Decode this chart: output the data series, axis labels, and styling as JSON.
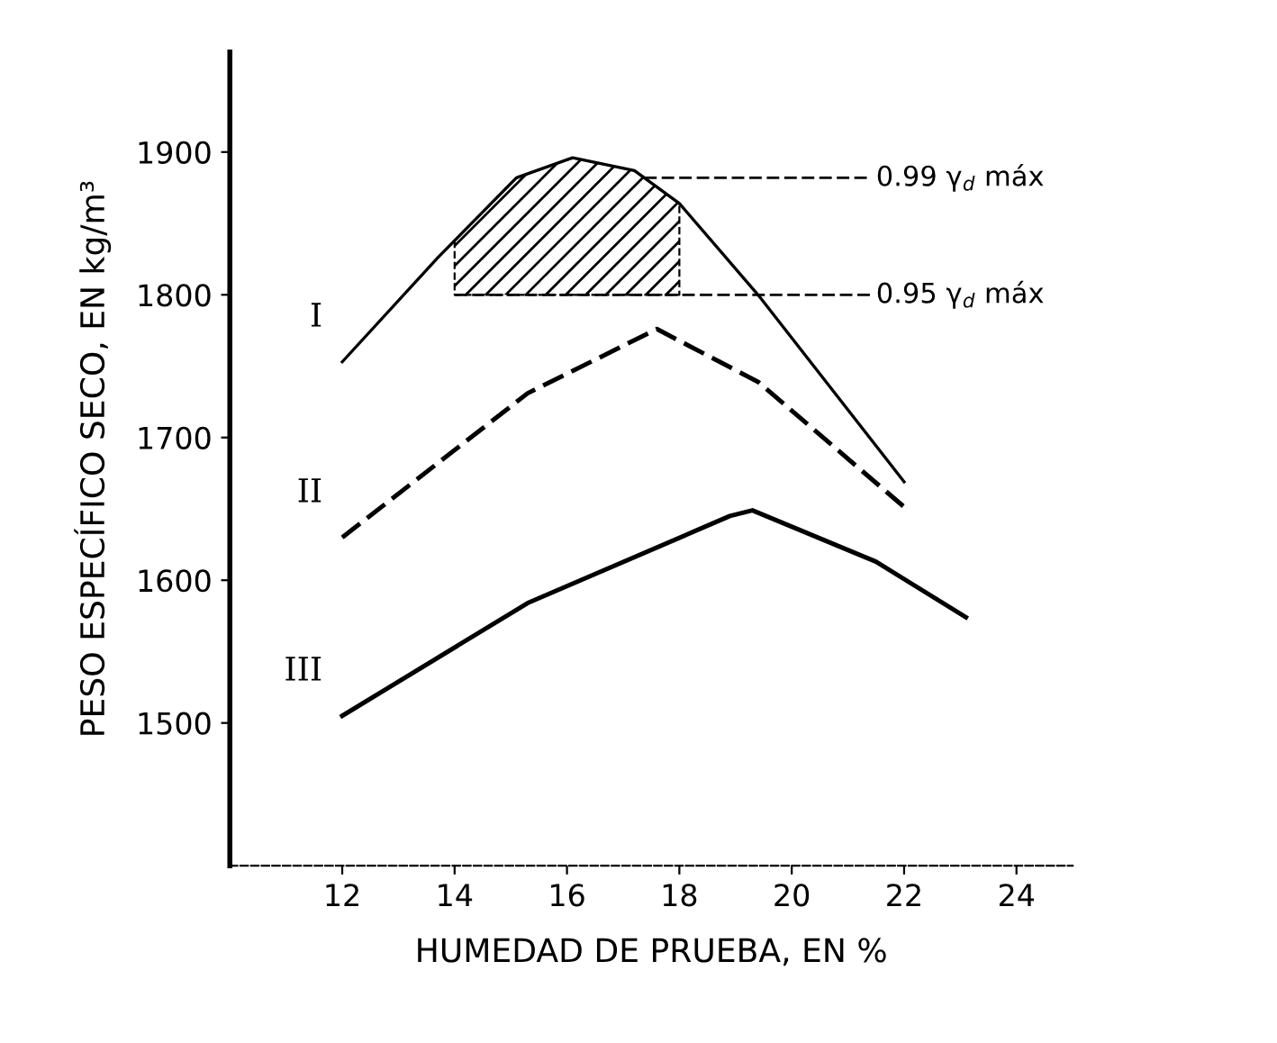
{
  "chart_data": {
    "type": "line",
    "xlabel": "HUMEDAD DE PRUEBA, EN %",
    "ylabel": "PESO ESPECÍFICO SECO, EN kg/m³",
    "xlim": [
      10,
      25
    ],
    "ylim": [
      1400,
      1970
    ],
    "xticks": [
      12,
      14,
      16,
      18,
      20,
      22,
      24
    ],
    "yticks": [
      1500,
      1600,
      1700,
      1800,
      1900
    ],
    "grid": false,
    "legend": false,
    "marker": "none",
    "series": [
      {
        "name": "I",
        "color": "#000000",
        "line_style": "solid",
        "x": [
          12,
          13.7,
          15.1,
          16.1,
          17.2,
          18.0,
          19.4,
          22.0
        ],
        "values": [
          1753,
          1826,
          1882,
          1896,
          1887,
          1864,
          1800,
          1669
        ]
      },
      {
        "name": "II",
        "color": "#000000",
        "line_style": "dashed",
        "x": [
          12,
          15.3,
          17.6,
          19.4,
          22.1
        ],
        "values": [
          1630,
          1731,
          1776,
          1739,
          1648
        ]
      },
      {
        "name": "III",
        "color": "#000000",
        "line_style": "solid",
        "x": [
          12,
          15.3,
          18.9,
          19.3,
          21.5,
          23.1
        ],
        "values": [
          1505,
          1584,
          1645,
          1649,
          1613,
          1574
        ]
      }
    ],
    "ref_lines": [
      {
        "axis": "y",
        "value": 1882,
        "label": "0.99 γ$_{d}$ máx",
        "line_style": "dashed",
        "color": "#000000"
      },
      {
        "axis": "y",
        "value": 1800,
        "label": "0.95 γ$_{d}$ máx",
        "line_style": "dashed",
        "color": "#000000"
      }
    ]
  }
}
